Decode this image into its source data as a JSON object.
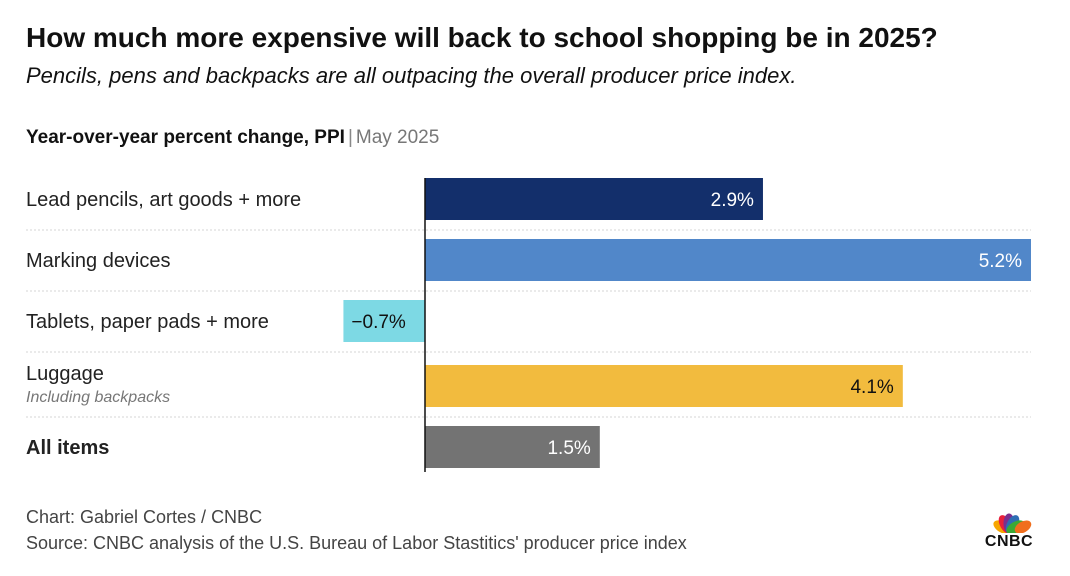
{
  "title": "How much more expensive will back to school shopping be in 2025?",
  "subtitle": "Pencils, pens and backpacks are all outpacing the overall producer price index.",
  "measure": {
    "label": "Year-over-year percent change, PPI",
    "separator": "|",
    "date": "May 2025"
  },
  "chart_data": {
    "type": "bar",
    "orientation": "horizontal",
    "categories": [
      "Lead pencils, art goods + more",
      "Marking devices",
      "Tablets, paper pads + more",
      "Luggage",
      "All items"
    ],
    "sublabels": [
      "",
      "",
      "",
      "Including backpacks",
      ""
    ],
    "values": [
      2.9,
      5.2,
      -0.7,
      4.1,
      1.5
    ],
    "value_labels": [
      "2.9%",
      "5.2%",
      "−0.7%",
      "4.1%",
      "1.5%"
    ],
    "colors": [
      "#132f6b",
      "#5187c9",
      "#7dd9e4",
      "#f2bb3e",
      "#737373"
    ],
    "label_colors": [
      "#ffffff",
      "#ffffff",
      "#111111",
      "#111111",
      "#ffffff"
    ],
    "bold_categories": [
      false,
      false,
      false,
      false,
      true
    ],
    "xlim": [
      -0.7,
      5.2
    ],
    "xlabel": "",
    "ylabel": "",
    "title": "How much more expensive will back to school shopping be in 2025?"
  },
  "footer": {
    "credit": "Chart: Gabriel Cortes / CNBC",
    "source": "Source: CNBC analysis of the U.S. Bureau of Labor Stastitics' producer price index"
  },
  "logo": {
    "text": "CNBC",
    "colors": [
      "#f7a600",
      "#e8203b",
      "#7a2e8e",
      "#2e6db4",
      "#3aa935",
      "#f06e1d"
    ]
  }
}
